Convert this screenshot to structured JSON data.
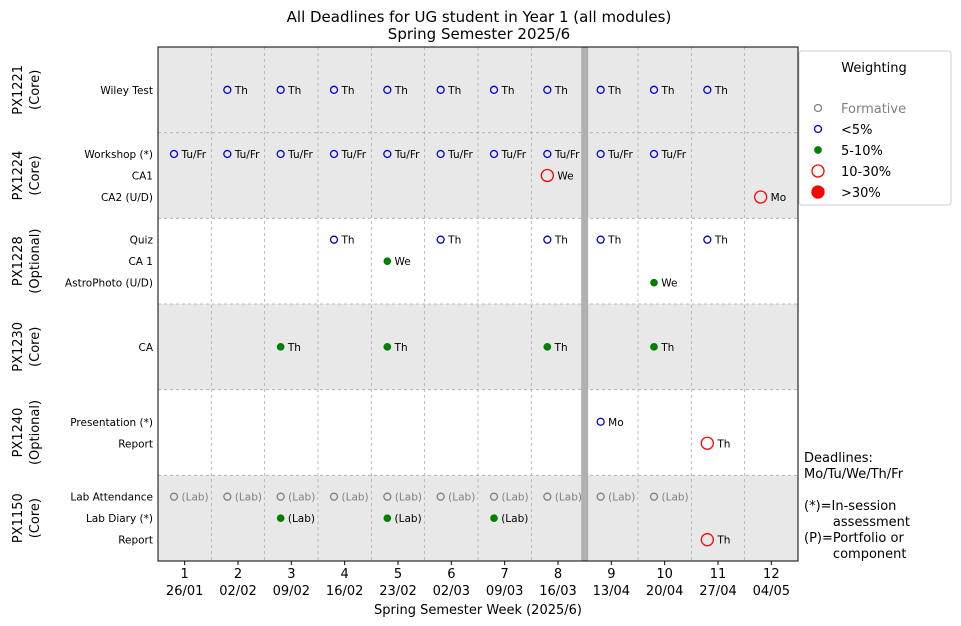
{
  "chart_data": {
    "type": "scatter",
    "title": "All Deadlines for UG student in Year 1 (all modules)",
    "subtitle": "Spring Semester 2025/6",
    "xlabel": "Spring Semester Week (2025/6)",
    "weeks": [
      {
        "week": "1",
        "date": "26/01"
      },
      {
        "week": "2",
        "date": "02/02"
      },
      {
        "week": "3",
        "date": "09/02"
      },
      {
        "week": "4",
        "date": "16/02"
      },
      {
        "week": "5",
        "date": "23/02"
      },
      {
        "week": "6",
        "date": "02/03"
      },
      {
        "week": "7",
        "date": "09/03"
      },
      {
        "week": "8",
        "date": "16/03"
      },
      {
        "week": "9",
        "date": "13/04"
      },
      {
        "week": "10",
        "date": "20/04"
      },
      {
        "week": "11",
        "date": "27/04"
      },
      {
        "week": "12",
        "date": "04/05"
      }
    ],
    "xlim": [
      0.5,
      12.5
    ],
    "break_after_week": 8,
    "grid": true,
    "legend": {
      "title": "Weighting",
      "placement": "right",
      "entries": [
        {
          "key": "formative",
          "label": "Formative"
        },
        {
          "key": "lt5",
          "label": "<5%"
        },
        {
          "key": "5to10",
          "label": "5-10%"
        },
        {
          "key": "10to30",
          "label": "10-30%"
        },
        {
          "key": "gt30",
          "label": ">30%"
        }
      ]
    },
    "weight_styles": {
      "formative": {
        "color": "#808080",
        "filled": false,
        "size": "small"
      },
      "lt5": {
        "color": "#0000cc",
        "filled": false,
        "size": "small"
      },
      "5to10": {
        "color": "#008000",
        "filled": true,
        "size": "small"
      },
      "10to30": {
        "color": "#ff0000",
        "filled": false,
        "size": "large"
      },
      "gt30": {
        "color": "#ff0000",
        "filled": true,
        "size": "large"
      }
    },
    "band_colors": [
      "#e8e8e8",
      "#ffffff"
    ],
    "modules": [
      {
        "code": "PX1221",
        "status": "(Core)",
        "shaded": true,
        "assessments": [
          {
            "name": "Wiley Test",
            "points": [
              {
                "x": 1.8,
                "weight": "lt5",
                "label": "Th"
              },
              {
                "x": 2.8,
                "weight": "lt5",
                "label": "Th"
              },
              {
                "x": 3.8,
                "weight": "lt5",
                "label": "Th"
              },
              {
                "x": 4.8,
                "weight": "lt5",
                "label": "Th"
              },
              {
                "x": 5.8,
                "weight": "lt5",
                "label": "Th"
              },
              {
                "x": 6.8,
                "weight": "lt5",
                "label": "Th"
              },
              {
                "x": 7.8,
                "weight": "lt5",
                "label": "Th"
              },
              {
                "x": 8.8,
                "weight": "lt5",
                "label": "Th"
              },
              {
                "x": 9.8,
                "weight": "lt5",
                "label": "Th"
              },
              {
                "x": 10.8,
                "weight": "lt5",
                "label": "Th"
              }
            ]
          }
        ]
      },
      {
        "code": "PX1224",
        "status": "(Core)",
        "shaded": true,
        "assessments": [
          {
            "name": "Workshop (*)",
            "points": [
              {
                "x": 0.8,
                "weight": "lt5",
                "label": "Tu/Fr"
              },
              {
                "x": 1.8,
                "weight": "lt5",
                "label": "Tu/Fr"
              },
              {
                "x": 2.8,
                "weight": "lt5",
                "label": "Tu/Fr"
              },
              {
                "x": 3.8,
                "weight": "lt5",
                "label": "Tu/Fr"
              },
              {
                "x": 4.8,
                "weight": "lt5",
                "label": "Tu/Fr"
              },
              {
                "x": 5.8,
                "weight": "lt5",
                "label": "Tu/Fr"
              },
              {
                "x": 6.8,
                "weight": "lt5",
                "label": "Tu/Fr"
              },
              {
                "x": 7.8,
                "weight": "lt5",
                "label": "Tu/Fr"
              },
              {
                "x": 8.8,
                "weight": "lt5",
                "label": "Tu/Fr"
              },
              {
                "x": 9.8,
                "weight": "lt5",
                "label": "Tu/Fr"
              }
            ]
          },
          {
            "name": "CA1",
            "points": [
              {
                "x": 7.8,
                "weight": "10to30",
                "label": "We"
              }
            ]
          },
          {
            "name": "CA2 (U/D)",
            "points": [
              {
                "x": 11.8,
                "weight": "10to30",
                "label": "Mo"
              }
            ]
          }
        ]
      },
      {
        "code": "PX1228",
        "status": "(Optional)",
        "shaded": false,
        "assessments": [
          {
            "name": "Quiz",
            "points": [
              {
                "x": 3.8,
                "weight": "lt5",
                "label": "Th"
              },
              {
                "x": 5.8,
                "weight": "lt5",
                "label": "Th"
              },
              {
                "x": 7.8,
                "weight": "lt5",
                "label": "Th"
              },
              {
                "x": 8.8,
                "weight": "lt5",
                "label": "Th"
              },
              {
                "x": 10.8,
                "weight": "lt5",
                "label": "Th"
              }
            ]
          },
          {
            "name": "CA 1",
            "points": [
              {
                "x": 4.8,
                "weight": "5to10",
                "label": "We"
              }
            ]
          },
          {
            "name": "AstroPhoto (U/D)",
            "points": [
              {
                "x": 9.8,
                "weight": "5to10",
                "label": "We"
              }
            ]
          }
        ]
      },
      {
        "code": "PX1230",
        "status": "(Core)",
        "shaded": true,
        "assessments": [
          {
            "name": "CA",
            "points": [
              {
                "x": 2.8,
                "weight": "5to10",
                "label": "Th"
              },
              {
                "x": 4.8,
                "weight": "5to10",
                "label": "Th"
              },
              {
                "x": 7.8,
                "weight": "5to10",
                "label": "Th"
              },
              {
                "x": 9.8,
                "weight": "5to10",
                "label": "Th"
              }
            ]
          }
        ]
      },
      {
        "code": "PX1240",
        "status": "(Optional)",
        "shaded": false,
        "assessments": [
          {
            "name": "Presentation (*)",
            "points": [
              {
                "x": 8.8,
                "weight": "lt5",
                "label": "Mo"
              }
            ]
          },
          {
            "name": "Report",
            "points": [
              {
                "x": 10.8,
                "weight": "10to30",
                "label": "Th"
              }
            ]
          }
        ]
      },
      {
        "code": "PX1150",
        "status": "(Core)",
        "shaded": true,
        "assessments": [
          {
            "name": "Lab Attendance",
            "points": [
              {
                "x": 0.8,
                "weight": "formative",
                "label": "(Lab)"
              },
              {
                "x": 1.8,
                "weight": "formative",
                "label": "(Lab)"
              },
              {
                "x": 2.8,
                "weight": "formative",
                "label": "(Lab)"
              },
              {
                "x": 3.8,
                "weight": "formative",
                "label": "(Lab)"
              },
              {
                "x": 4.8,
                "weight": "formative",
                "label": "(Lab)"
              },
              {
                "x": 5.8,
                "weight": "formative",
                "label": "(Lab)"
              },
              {
                "x": 6.8,
                "weight": "formative",
                "label": "(Lab)"
              },
              {
                "x": 7.8,
                "weight": "formative",
                "label": "(Lab)"
              },
              {
                "x": 8.8,
                "weight": "formative",
                "label": "(Lab)"
              },
              {
                "x": 9.8,
                "weight": "formative",
                "label": "(Lab)"
              }
            ]
          },
          {
            "name": "Lab Diary (*)",
            "points": [
              {
                "x": 2.8,
                "weight": "5to10",
                "label": "(Lab)"
              },
              {
                "x": 4.8,
                "weight": "5to10",
                "label": "(Lab)"
              },
              {
                "x": 6.8,
                "weight": "5to10",
                "label": "(Lab)"
              }
            ]
          },
          {
            "name": "Report",
            "points": [
              {
                "x": 10.8,
                "weight": "10to30",
                "label": "Th"
              }
            ]
          }
        ]
      }
    ],
    "notes": [
      "Deadlines:",
      "Mo/Tu/We/Th/Fr",
      "",
      "(*)=In-session",
      "       assessment",
      "(P)=Portfolio or",
      "       component"
    ]
  }
}
